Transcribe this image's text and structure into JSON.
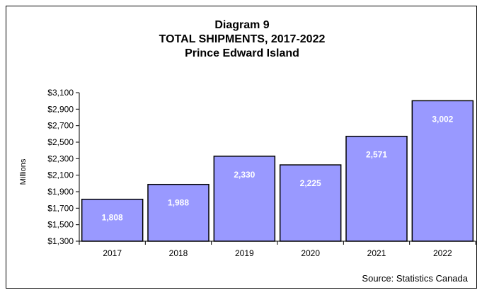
{
  "colors": {
    "bar_fill": "#9999ff",
    "bar_stroke": "#000000",
    "axis": "#000000",
    "bar_label": "#ffffff"
  },
  "chart_data": {
    "type": "bar",
    "title": [
      "Diagram 9",
      "TOTAL SHIPMENTS, 2017-2022",
      "Prince Edward Island"
    ],
    "xlabel": "",
    "ylabel": "Millions",
    "categories": [
      "2017",
      "2018",
      "2019",
      "2020",
      "2021",
      "2022"
    ],
    "values": [
      1808,
      1988,
      2330,
      2225,
      2571,
      3002
    ],
    "data_labels": [
      "1,808",
      "1,988",
      "2,330",
      "2,225",
      "2,571",
      "3,002"
    ],
    "ylim": [
      1300,
      3100
    ],
    "yticks": [
      1300,
      1500,
      1700,
      1900,
      2100,
      2300,
      2500,
      2700,
      2900,
      3100
    ],
    "ytick_labels": [
      "$1,300",
      "$1,500",
      "$1,700",
      "$1,900",
      "$2,100",
      "$2,300",
      "$2,500",
      "$2,700",
      "$2,900",
      "$3,100"
    ],
    "grid": false,
    "legend": "none"
  },
  "source": "Source: Statistics Canada"
}
